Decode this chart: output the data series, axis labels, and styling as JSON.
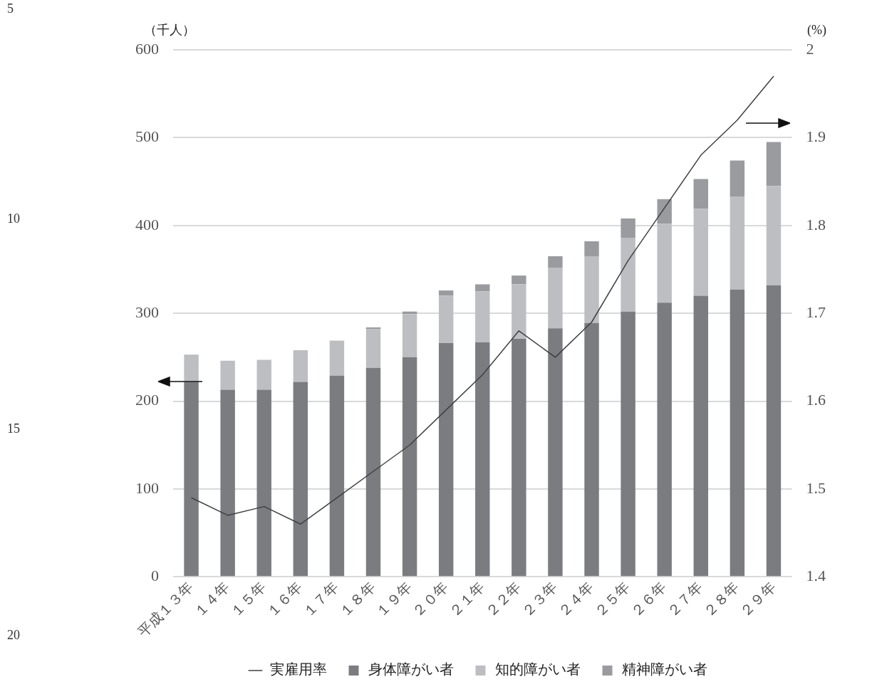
{
  "chart_data": {
    "type": "bar",
    "stacked": true,
    "ylabel": "（千人）",
    "y2label": "(%)",
    "categories": [
      "平成１３年",
      "１４年",
      "１５年",
      "１６年",
      "１７年",
      "１８年",
      "１９年",
      "２０年",
      "２１年",
      "２２年",
      "２３年",
      "２４年",
      "２５年",
      "２６年",
      "２７年",
      "２８年",
      "２９年"
    ],
    "series": [
      {
        "name": "身体障がい者",
        "color": "#7b7c80",
        "values": [
          222,
          213,
          213,
          222,
          229,
          238,
          250,
          266,
          267,
          271,
          283,
          289,
          302,
          312,
          320,
          327,
          332
        ]
      },
      {
        "name": "知的障がい者",
        "color": "#bdbec2",
        "values": [
          31,
          33,
          34,
          36,
          40,
          44,
          49,
          54,
          58,
          62,
          69,
          76,
          84,
          90,
          99,
          106,
          113
        ]
      },
      {
        "name": "精神障がい者",
        "color": "#9a9b9f",
        "values": [
          0,
          0,
          0,
          0,
          0,
          2,
          3,
          6,
          8,
          10,
          13,
          17,
          22,
          28,
          34,
          41,
          50
        ]
      },
      {
        "name": "実雇用率",
        "type": "line",
        "axis": "y2",
        "marker": "none",
        "color": "#404040",
        "values": [
          1.49,
          1.47,
          1.48,
          1.46,
          1.49,
          1.52,
          1.55,
          1.59,
          1.63,
          1.68,
          1.65,
          1.69,
          1.76,
          1.82,
          1.88,
          1.92,
          1.97
        ]
      }
    ],
    "ylim": [
      0,
      600
    ],
    "yticks": [
      0,
      100,
      200,
      300,
      400,
      500,
      600
    ],
    "y2lim": [
      1.4,
      2
    ],
    "y2ticks": [
      1.4,
      1.5,
      1.6,
      1.7,
      1.8,
      1.9,
      2
    ],
    "grid": "y",
    "legend": "bottom",
    "annotations": [
      "5",
      "10",
      "15",
      "20"
    ]
  }
}
